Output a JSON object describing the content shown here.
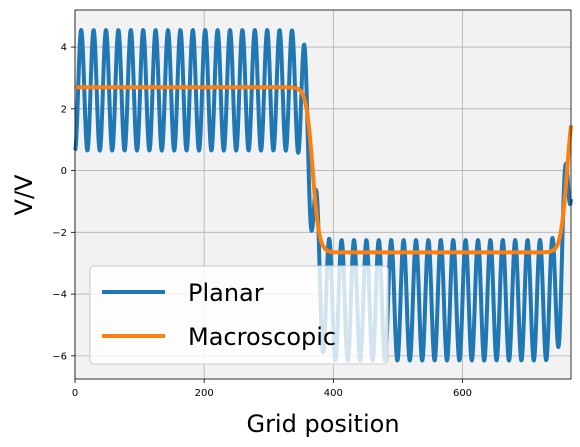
{
  "chart_data": {
    "type": "line",
    "title": "",
    "xlabel": "Grid position",
    "ylabel": "V/V",
    "xlim": [
      0,
      768
    ],
    "ylim": [
      -6.75,
      5.2
    ],
    "xticks": [
      0,
      200,
      400,
      600
    ],
    "yticks": [
      -6,
      -4,
      -2,
      0,
      2,
      4
    ],
    "ytick_labels": [
      "−6",
      "−4",
      "−2",
      "0",
      "2",
      "4"
    ],
    "grid": true,
    "plot_background": "#f2f2f2",
    "legend": {
      "placement": "lower-left"
    },
    "series": [
      {
        "name": "Planar",
        "color": "#1f77b4",
        "model": "oscillating step",
        "period": 19.2,
        "amplitude": 1.95,
        "plateau_high_center": 2.6,
        "plateau_low_center": -4.2,
        "step_down_x": 368,
        "step_up_x": 762,
        "x_range": [
          0,
          768
        ]
      },
      {
        "name": "Macroscopic",
        "color": "#ff7f0e",
        "model": "smooth step",
        "high_value": 2.7,
        "low_value": -2.65,
        "step_down_x": 368,
        "step_up_x": 762,
        "x_range": [
          0,
          768
        ]
      }
    ]
  }
}
